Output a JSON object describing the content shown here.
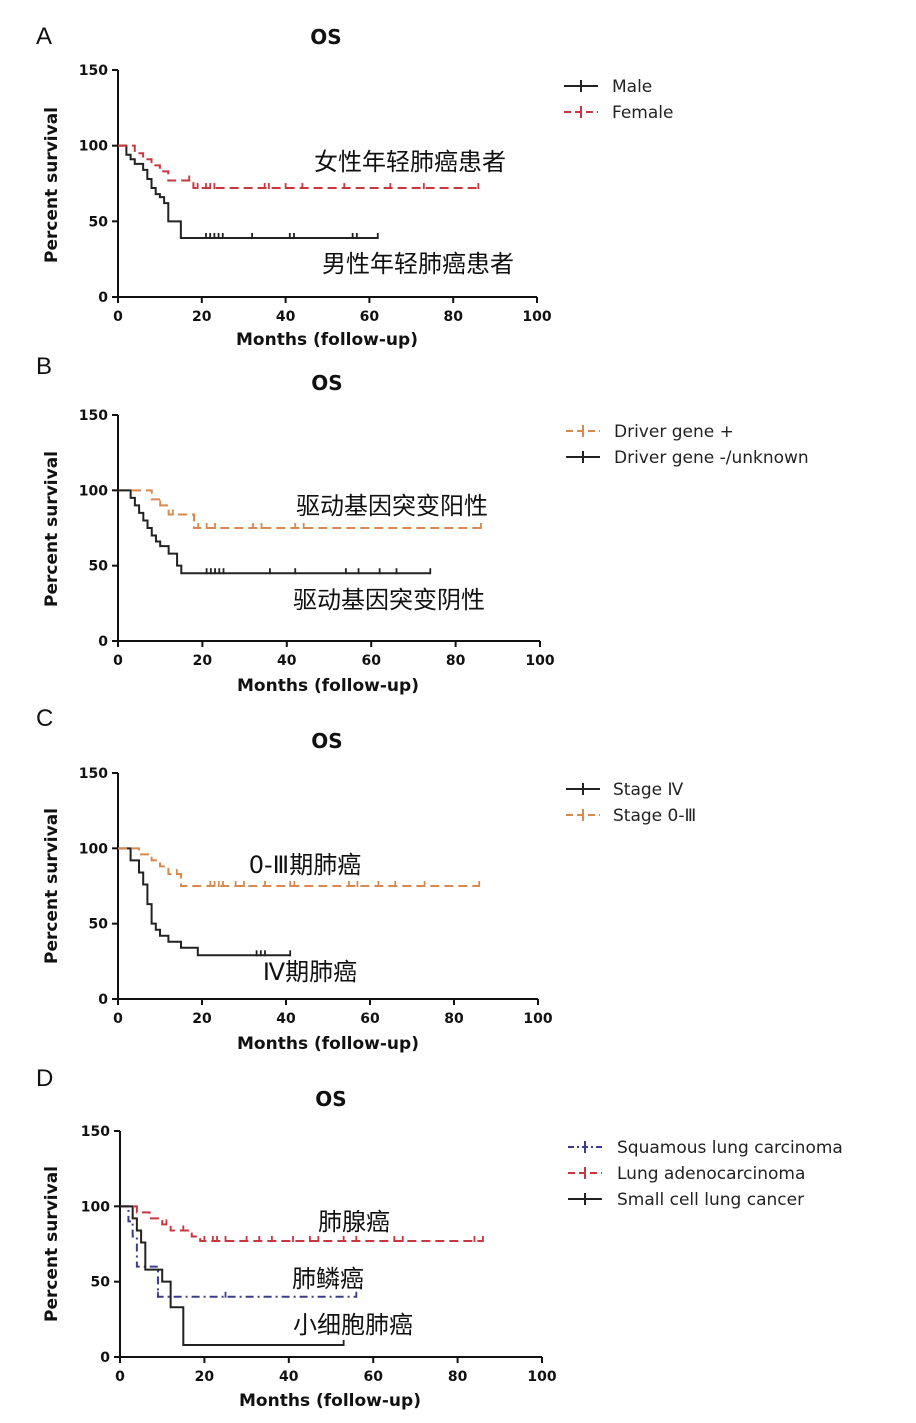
{
  "chart_data": [
    {
      "type": "line",
      "panel": "A",
      "title": "OS",
      "xlabel": "Months (follow-up)",
      "ylabel": "Percent survival",
      "xlim": [
        0,
        100
      ],
      "ylim": [
        0,
        150
      ],
      "xticks": [
        "0",
        "20",
        "40",
        "60",
        "80",
        "100"
      ],
      "yticks": [
        "0",
        "50",
        "100",
        "150"
      ],
      "legend": "top-right",
      "series": [
        {
          "name": "Male",
          "color": "#222222",
          "dash": "solid",
          "x": [
            0,
            2,
            3,
            4,
            6,
            7,
            8,
            9,
            10,
            11,
            12,
            15,
            62
          ],
          "y": [
            100,
            94,
            91,
            88,
            84,
            78,
            72,
            68,
            66,
            62,
            50,
            39,
            39
          ],
          "censors": [
            21,
            22,
            23,
            24,
            25,
            32,
            41,
            42,
            56,
            57,
            62
          ]
        },
        {
          "name": "Female",
          "color": "#c8373f",
          "dash": "dashed",
          "x": [
            0,
            4,
            6,
            8,
            10,
            12,
            18,
            86
          ],
          "y": [
            100,
            95,
            91,
            87,
            83,
            77,
            72,
            72
          ],
          "censors": [
            17,
            19,
            21,
            22,
            23,
            35,
            36,
            40,
            44,
            54,
            65,
            73,
            86
          ]
        }
      ],
      "annotations": [
        "女性年轻肺癌患者",
        "男性年轻肺癌患者"
      ]
    },
    {
      "type": "line",
      "panel": "B",
      "title": "OS",
      "xlabel": "Months (follow-up)",
      "ylabel": "Percent survival",
      "xlim": [
        0,
        100
      ],
      "ylim": [
        0,
        150
      ],
      "xticks": [
        "0",
        "20",
        "40",
        "60",
        "80",
        "100"
      ],
      "yticks": [
        "0",
        "50",
        "100",
        "150"
      ],
      "legend": "top-right",
      "series": [
        {
          "name": "Driver gene +",
          "color": "#d8894f",
          "dash": "dashed",
          "x": [
            0,
            8,
            10,
            12,
            18,
            86
          ],
          "y": [
            100,
            94,
            90,
            84,
            75,
            75
          ],
          "censors": [
            10,
            13,
            19,
            21,
            23,
            32,
            34,
            42,
            44,
            86
          ]
        },
        {
          "name": "Driver gene -/unknown",
          "color": "#222222",
          "dash": "solid",
          "x": [
            0,
            3,
            4,
            5,
            6,
            7,
            8,
            9,
            10,
            12,
            14,
            15,
            74
          ],
          "y": [
            100,
            95,
            90,
            85,
            80,
            75,
            70,
            66,
            63,
            58,
            50,
            45,
            45
          ],
          "censors": [
            21,
            22,
            23,
            24,
            25,
            36,
            42,
            54,
            57,
            62,
            66,
            74
          ]
        }
      ],
      "annotations": [
        "驱动基因突变阳性",
        "驱动基因突变阴性"
      ]
    },
    {
      "type": "line",
      "panel": "C",
      "title": "OS",
      "xlabel": "Months (follow-up)",
      "ylabel": "Percent survival",
      "xlim": [
        0,
        100
      ],
      "ylim": [
        0,
        150
      ],
      "xticks": [
        "0",
        "20",
        "40",
        "60",
        "80",
        "100"
      ],
      "yticks": [
        "0",
        "50",
        "100",
        "150"
      ],
      "legend": "top-right",
      "series": [
        {
          "name": "Stage Ⅳ",
          "color": "#222222",
          "dash": "solid",
          "x": [
            0,
            3,
            5,
            6,
            7,
            8,
            9,
            10,
            12,
            15,
            19,
            41
          ],
          "y": [
            100,
            92,
            84,
            76,
            63,
            50,
            46,
            42,
            38,
            34,
            29,
            29
          ],
          "censors": [
            33,
            34,
            35,
            41
          ]
        },
        {
          "name": "Stage 0-Ⅲ",
          "color": "#d8894f",
          "dash": "dashed",
          "x": [
            0,
            5,
            8,
            10,
            12,
            15,
            86
          ],
          "y": [
            100,
            96,
            92,
            88,
            83,
            75,
            75
          ],
          "censors": [
            14,
            22,
            23,
            24,
            25,
            28,
            30,
            35,
            41,
            42,
            55,
            57,
            62,
            66,
            73,
            86
          ]
        }
      ],
      "annotations": [
        "0-Ⅲ期肺癌",
        "Ⅳ期肺癌"
      ]
    },
    {
      "type": "line",
      "panel": "D",
      "title": "OS",
      "xlabel": "Months (follow-up)",
      "ylabel": "Percent survival",
      "xlim": [
        0,
        100
      ],
      "ylim": [
        0,
        150
      ],
      "xticks": [
        "0",
        "20",
        "40",
        "60",
        "80",
        "100"
      ],
      "yticks": [
        "0",
        "50",
        "100",
        "150"
      ],
      "legend": "top-right",
      "series": [
        {
          "name": "Squamous lung carcinoma",
          "color": "#3c3c8c",
          "dash": "dashdot",
          "x": [
            0,
            2,
            3,
            4,
            8,
            9,
            56
          ],
          "y": [
            100,
            90,
            80,
            60,
            60,
            40,
            40
          ],
          "censors": [
            9,
            25,
            56
          ]
        },
        {
          "name": "Lung adenocarcinoma",
          "color": "#c8373f",
          "dash": "dashed",
          "x": [
            0,
            4,
            7,
            10,
            12,
            17,
            19,
            86
          ],
          "y": [
            100,
            96,
            92,
            88,
            84,
            80,
            77,
            77
          ],
          "censors": [
            11,
            15,
            20,
            22,
            23,
            25,
            30,
            33,
            36,
            41,
            45,
            47,
            53,
            56,
            65,
            67,
            84,
            86
          ]
        },
        {
          "name": "Small cell lung cancer",
          "color": "#222222",
          "dash": "solid",
          "x": [
            0,
            3,
            4,
            5,
            6,
            9,
            10,
            12,
            15,
            53
          ],
          "y": [
            100,
            92,
            84,
            76,
            58,
            58,
            50,
            33,
            8,
            8
          ],
          "censors": [
            53
          ]
        }
      ],
      "annotations": [
        "肺腺癌",
        "肺鳞癌",
        "小细胞肺癌"
      ]
    }
  ]
}
